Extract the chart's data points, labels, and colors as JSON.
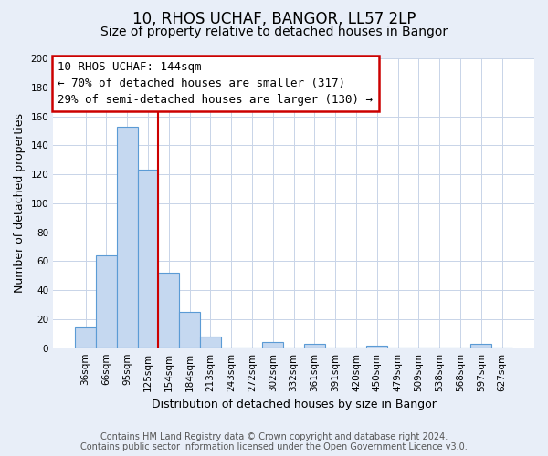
{
  "title": "10, RHOS UCHAF, BANGOR, LL57 2LP",
  "subtitle": "Size of property relative to detached houses in Bangor",
  "xlabel": "Distribution of detached houses by size in Bangor",
  "ylabel": "Number of detached properties",
  "bar_labels": [
    "36sqm",
    "66sqm",
    "95sqm",
    "125sqm",
    "154sqm",
    "184sqm",
    "213sqm",
    "243sqm",
    "272sqm",
    "302sqm",
    "332sqm",
    "361sqm",
    "391sqm",
    "420sqm",
    "450sqm",
    "479sqm",
    "509sqm",
    "538sqm",
    "568sqm",
    "597sqm",
    "627sqm"
  ],
  "bar_values": [
    14,
    64,
    153,
    123,
    52,
    25,
    8,
    0,
    0,
    4,
    0,
    3,
    0,
    0,
    2,
    0,
    0,
    0,
    0,
    3,
    0
  ],
  "bar_color": "#c5d8f0",
  "bar_edge_color": "#5b9bd5",
  "ylim": [
    0,
    200
  ],
  "yticks": [
    0,
    20,
    40,
    60,
    80,
    100,
    120,
    140,
    160,
    180,
    200
  ],
  "vline_x": 3.5,
  "vline_color": "#cc0000",
  "annotation_line1": "10 RHOS UCHAF: 144sqm",
  "annotation_line2": "← 70% of detached houses are smaller (317)",
  "annotation_line3": "29% of semi-detached houses are larger (130) →",
  "footer_line1": "Contains HM Land Registry data © Crown copyright and database right 2024.",
  "footer_line2": "Contains public sector information licensed under the Open Government Licence v3.0.",
  "bg_color": "#e8eef8",
  "plot_bg_color": "#ffffff",
  "grid_color": "#c8d4e8",
  "title_fontsize": 12,
  "subtitle_fontsize": 10,
  "axis_label_fontsize": 9,
  "tick_fontsize": 7.5,
  "annotation_fontsize": 9,
  "footer_fontsize": 7
}
